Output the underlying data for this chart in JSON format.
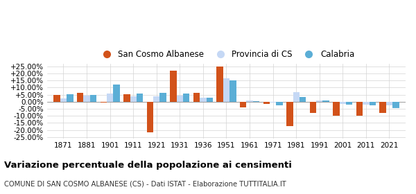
{
  "years": [
    1871,
    1881,
    1901,
    1911,
    1921,
    1931,
    1936,
    1951,
    1961,
    1971,
    1981,
    1991,
    2001,
    2011,
    2021
  ],
  "san_cosmo": [
    4.8,
    6.5,
    -0.8,
    5.3,
    -21.5,
    22.0,
    6.2,
    25.0,
    -4.0,
    -1.5,
    -17.5,
    -8.0,
    -10.0,
    -10.0,
    -8.0
  ],
  "provincia_cs": [
    2.5,
    4.5,
    6.0,
    3.8,
    4.0,
    4.5,
    3.0,
    16.5,
    1.0,
    -0.5,
    7.0,
    1.0,
    -1.5,
    -2.0,
    -2.5
  ],
  "calabria": [
    5.2,
    4.8,
    12.0,
    6.0,
    6.5,
    5.8,
    3.0,
    15.0,
    0.5,
    -2.5,
    3.5,
    0.8,
    -2.0,
    -2.5,
    -4.5
  ],
  "color_san_cosmo": "#d2521a",
  "color_provincia": "#c5d8f5",
  "color_calabria": "#5baed6",
  "title": "Variazione percentuale della popolazione ai censimenti",
  "subtitle": "COMUNE DI SAN COSMO ALBANESE (CS) - Dati ISTAT - Elaborazione TUTTITALIA.IT",
  "legend_labels": [
    "San Cosmo Albanese",
    "Provincia di CS",
    "Calabria"
  ],
  "ylim": [
    -25,
    25
  ],
  "yticks": [
    -25,
    -20,
    -15,
    -10,
    -5,
    0,
    5,
    10,
    15,
    20,
    25
  ],
  "bar_width": 0.28,
  "background_color": "#ffffff"
}
